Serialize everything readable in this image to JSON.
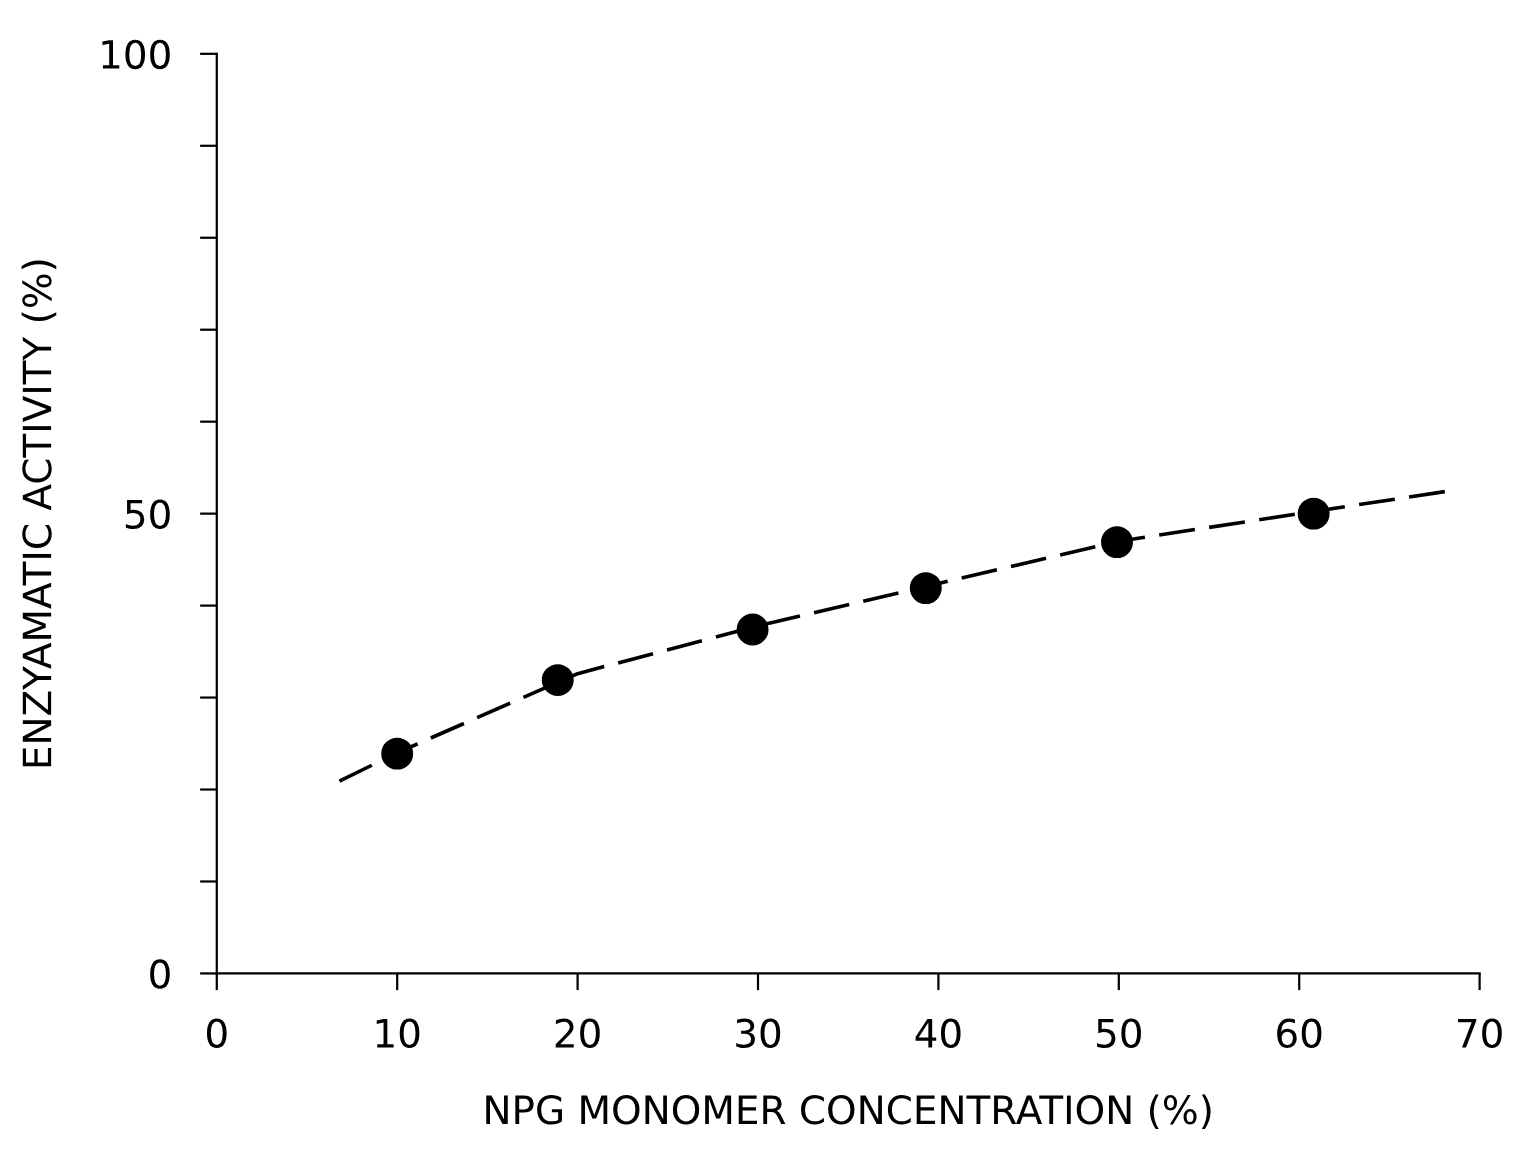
{
  "chart_data": {
    "type": "scatter",
    "xlabel": "NPG MONOMER CONCENTRATION (%)",
    "ylabel": "ENZYAMATIC ACTIVITY (%)",
    "xlim": [
      0,
      70
    ],
    "ylim": [
      0,
      100
    ],
    "xticks": [
      0,
      10,
      20,
      30,
      40,
      50,
      60,
      70
    ],
    "yticks": [
      0,
      {
        "value": 10,
        "label": null
      },
      {
        "value": 20,
        "label": null
      },
      {
        "value": 30,
        "label": null
      },
      {
        "value": 40,
        "label": null
      },
      50,
      {
        "value": 60,
        "label": null
      },
      {
        "value": 70,
        "label": null
      },
      {
        "value": 80,
        "label": null
      },
      {
        "value": 90,
        "label": null
      },
      100
    ],
    "grid": false,
    "legend": false,
    "series": [
      {
        "color": "#000000",
        "marker": "circle",
        "x": [
          10,
          18.9,
          29.7,
          39.3,
          49.9,
          60.8
        ],
        "values": [
          23.9,
          31.9,
          37.4,
          41.9,
          46.9,
          50.0
        ]
      },
      {
        "type": "line",
        "color": "#000000",
        "marker": "none",
        "line_style": "dashed",
        "x": [
          6.8,
          10,
          20,
          30,
          40,
          50,
          60,
          68.1
        ],
        "values": [
          20.9,
          24,
          32.6,
          37.8,
          42.4,
          47,
          50,
          52.4
        ]
      }
    ]
  }
}
